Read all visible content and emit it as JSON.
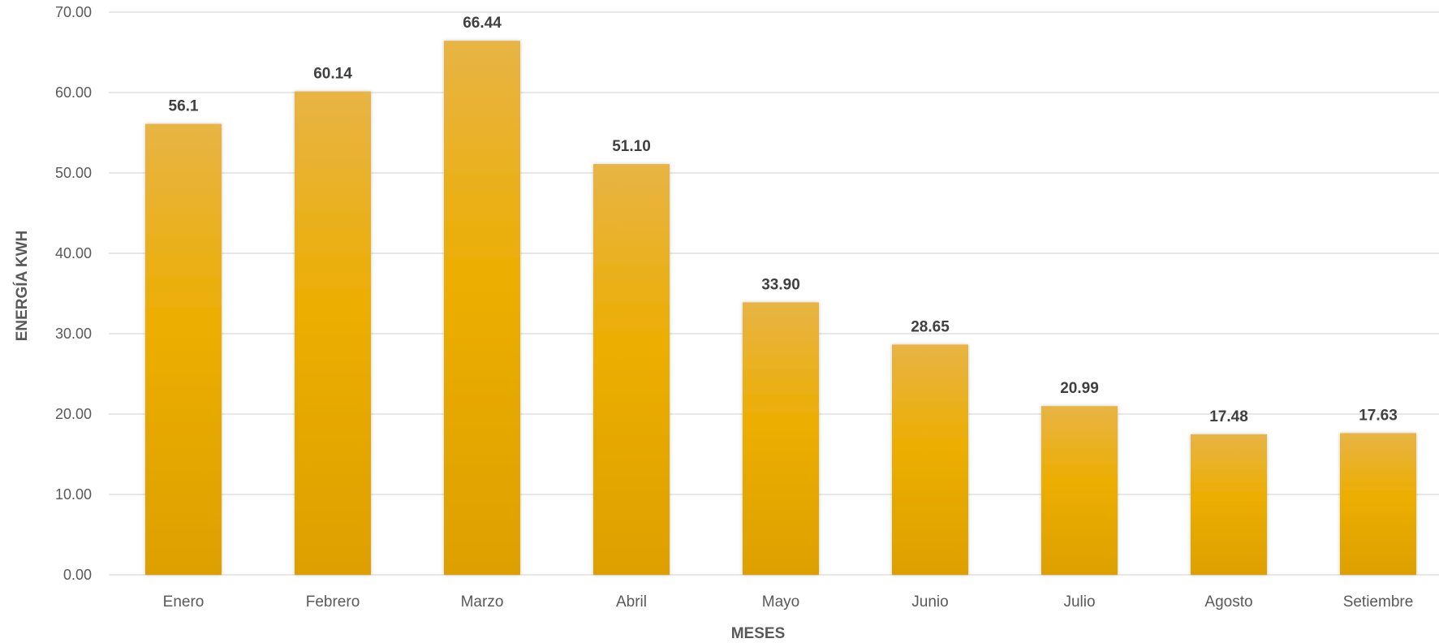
{
  "chart_data": {
    "type": "bar",
    "title": "",
    "xlabel": "MESES",
    "ylabel": "ENERGÍA KWH",
    "categories": [
      "Enero",
      "Febrero",
      "Marzo",
      "Abril",
      "Mayo",
      "Junio",
      "Julio",
      "Agosto",
      "Setiembre"
    ],
    "values": [
      56.1,
      60.14,
      66.44,
      51.1,
      33.9,
      28.65,
      20.99,
      17.48,
      17.63
    ],
    "data_labels": [
      "56.1",
      "60.14",
      "66.44",
      "51.10",
      "33.90",
      "28.65",
      "20.99",
      "17.48",
      "17.63"
    ],
    "y_ticks": [
      "0.00",
      "10.00",
      "20.00",
      "30.00",
      "40.00",
      "50.00",
      "60.00",
      "70.00"
    ],
    "ylim": [
      0,
      70
    ],
    "grid": true,
    "legend": "none",
    "colors": {
      "bar_top": "#E8B445",
      "bar_mid": "#ECAE00",
      "bar_bottom": "#DDA000",
      "grid": "#D9D9D9",
      "tick_text": "#595959",
      "label_text": "#404040"
    }
  }
}
